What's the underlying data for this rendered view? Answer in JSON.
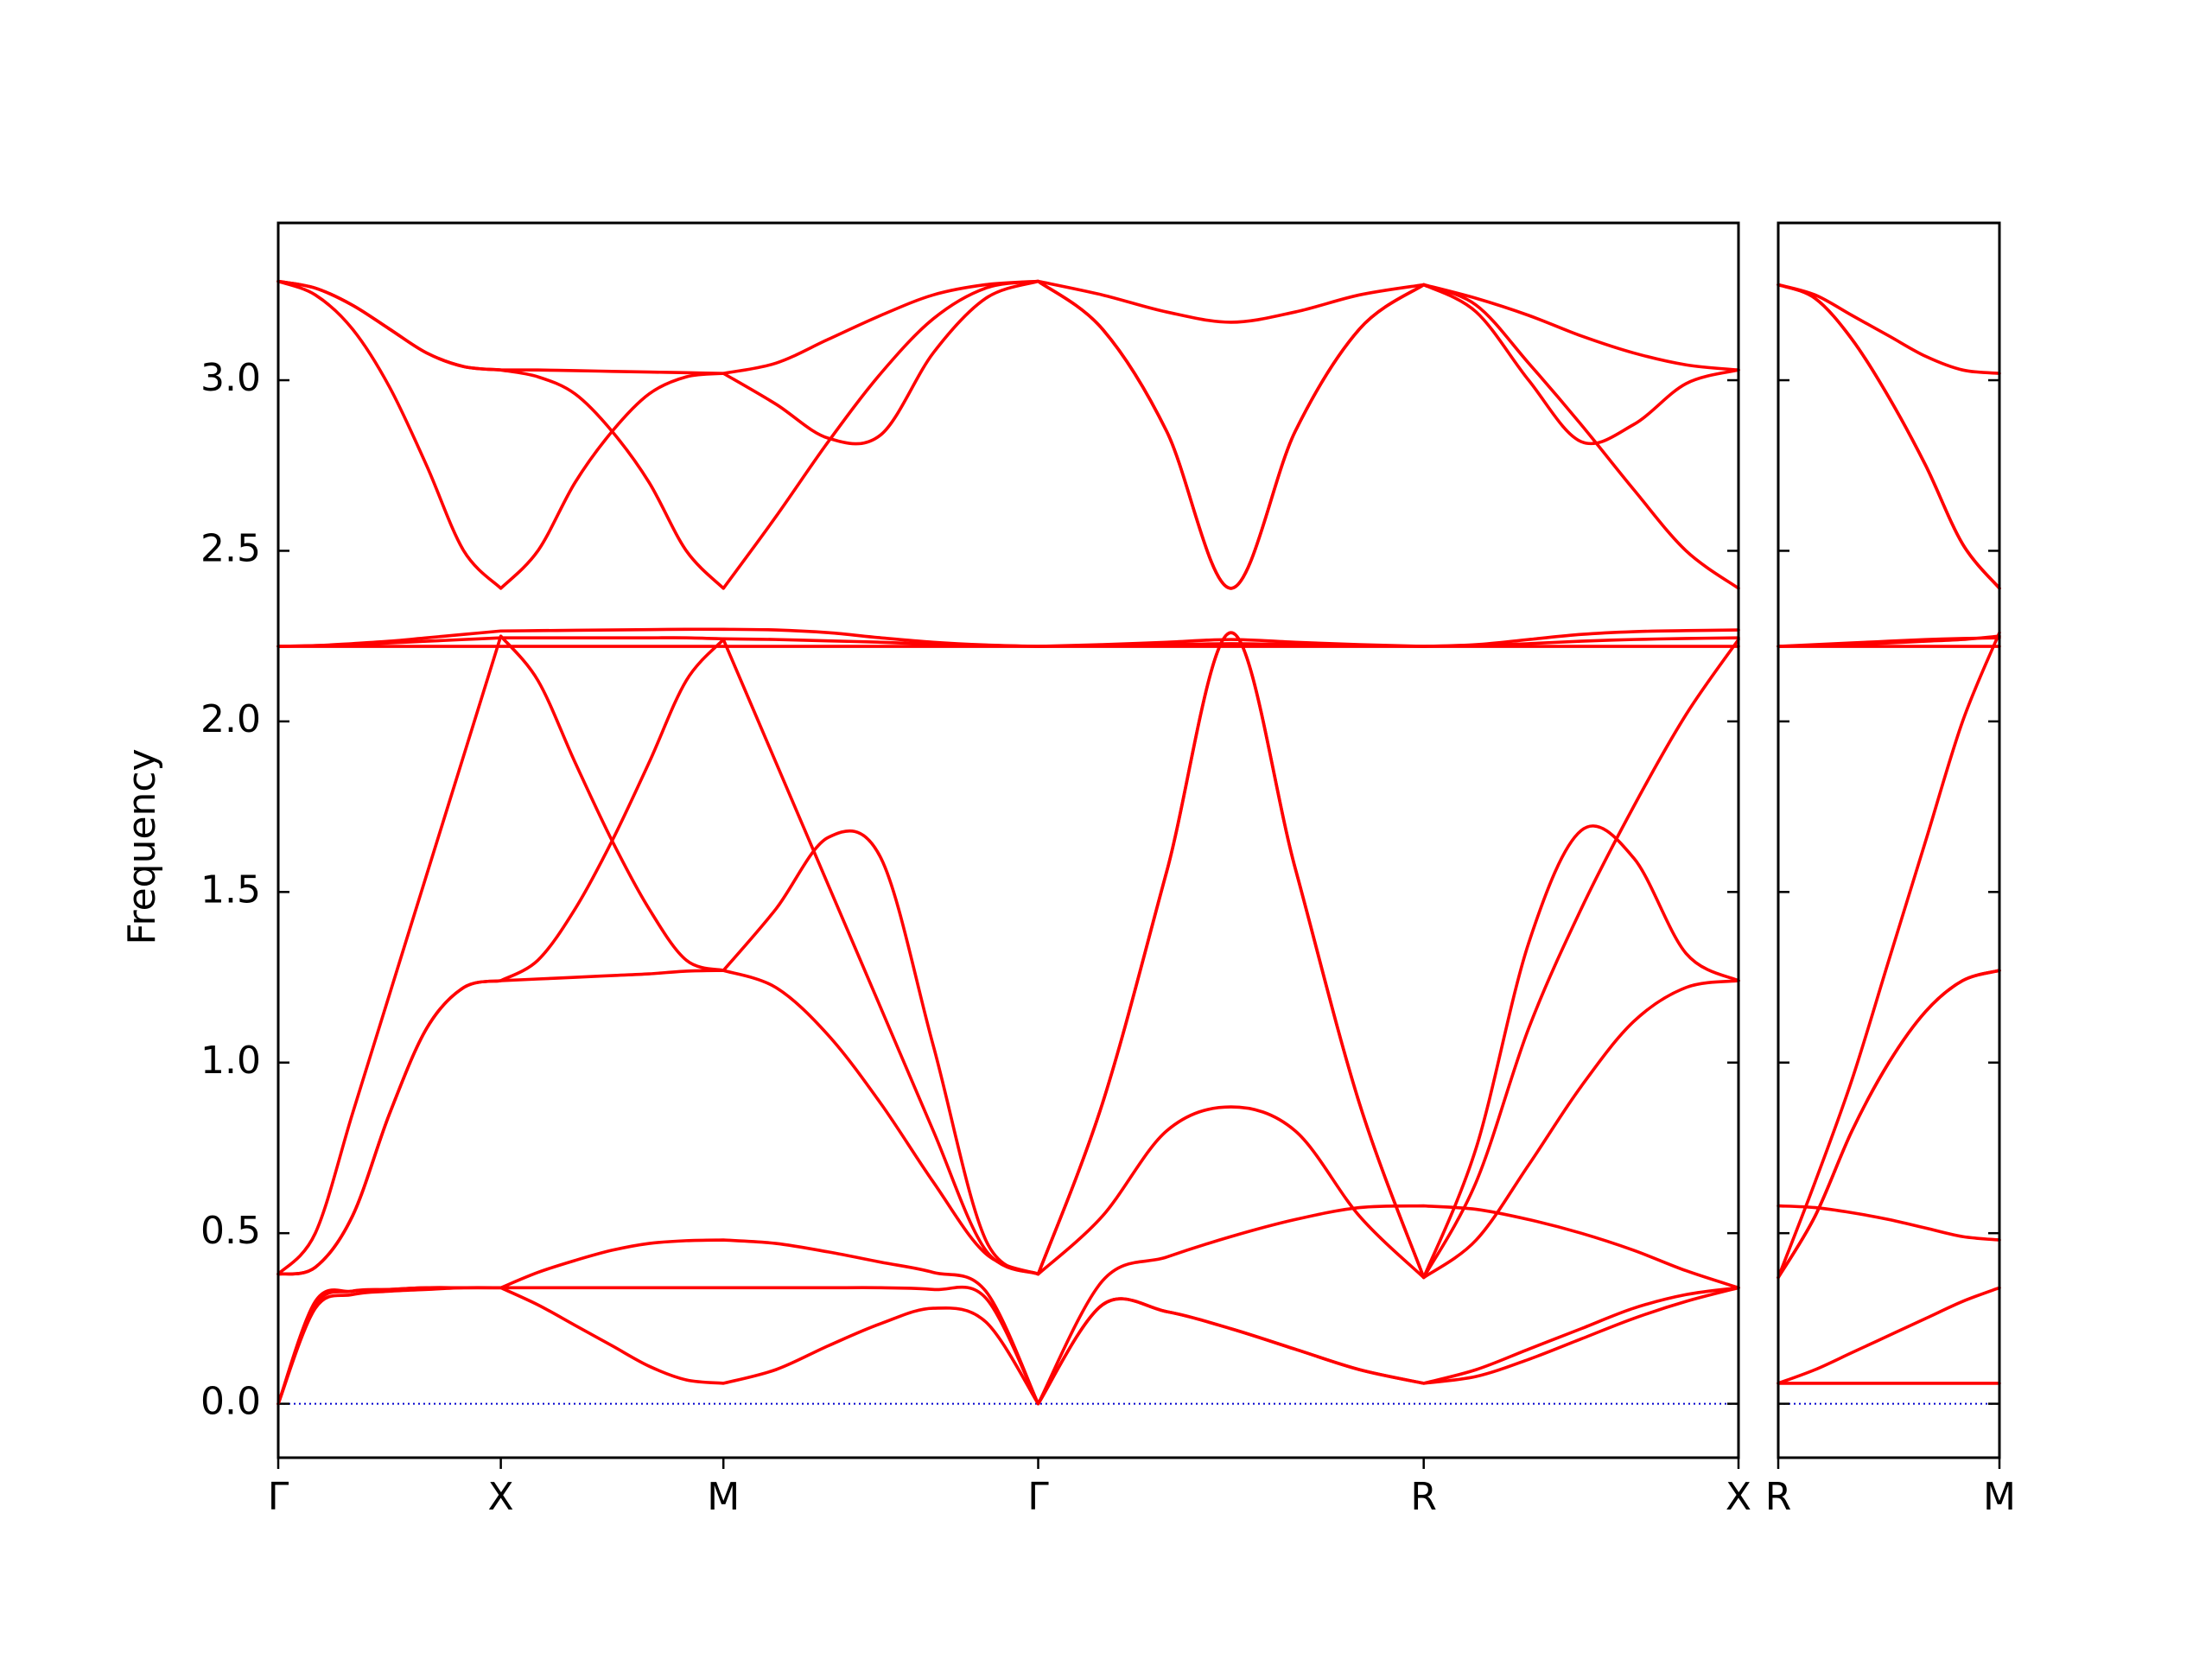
{
  "chart_data": [
    {
      "type": "line",
      "y_label": "Frequency",
      "x": [
        0,
        0.0833,
        0.1667,
        0.25,
        0.3333,
        0.4167,
        0.5,
        0.5833,
        0.6667,
        0.75,
        0.8333,
        0.9167,
        1.0,
        1.1179,
        1.2357,
        1.3536,
        1.4714,
        1.5893,
        1.7071,
        1.8514,
        1.9958,
        2.1401,
        2.2844,
        2.4288,
        2.5731,
        2.691,
        2.8088,
        2.9267,
        3.0445,
        3.1624,
        3.2802
      ],
      "xlim": [
        0,
        3.2802
      ],
      "xticks": [
        {
          "value": 0,
          "label": "Γ"
        },
        {
          "value": 0.5,
          "label": "X"
        },
        {
          "value": 1.0,
          "label": "M"
        },
        {
          "value": 1.7071,
          "label": "Γ"
        },
        {
          "value": 2.5731,
          "label": "R"
        },
        {
          "value": 3.2802,
          "label": "X"
        }
      ],
      "ylim": [
        -0.158,
        3.461
      ],
      "yticks": [
        {
          "value": 0,
          "label": "0.0"
        },
        0.5,
        {
          "value": 1,
          "label": "1.0"
        },
        1.5,
        {
          "value": 2,
          "label": "2.0"
        },
        2.5,
        {
          "value": 3,
          "label": "3.0"
        }
      ],
      "zero_line": 0,
      "zero_line_color": "#0000cd",
      "series": [
        {
          "color": "#ff0000",
          "values": [
            0,
            0.3,
            0.33,
            0.335,
            0.34,
            0.34,
            0.34,
            0.385,
            0.42,
            0.45,
            0.47,
            0.478,
            0.48,
            0.47,
            0.445,
            0.415,
            0.385,
            0.33,
            0,
            0.29,
            0.27,
            0.22,
            0.16,
            0.1,
            0.06,
            0.08,
            0.13,
            0.19,
            0.25,
            0.3,
            0.34
          ]
        },
        {
          "color": "#ff0000",
          "values": [
            0,
            0.29,
            0.33,
            0.335,
            0.34,
            0.34,
            0.34,
            0.34,
            0.34,
            0.34,
            0.34,
            0.34,
            0.34,
            0.34,
            0.34,
            0.34,
            0.335,
            0.31,
            0,
            0.36,
            0.43,
            0.49,
            0.54,
            0.575,
            0.58,
            0.57,
            0.54,
            0.5,
            0.45,
            0.39,
            0.34
          ]
        },
        {
          "color": "#ff0000",
          "values": [
            0,
            0.28,
            0.32,
            0.33,
            0.335,
            0.34,
            0.34,
            0.29,
            0.23,
            0.17,
            0.11,
            0.07,
            0.06,
            0.1,
            0.17,
            0.235,
            0.28,
            0.24,
            0,
            0.29,
            0.27,
            0.22,
            0.16,
            0.1,
            0.06,
            0.1,
            0.16,
            0.22,
            0.28,
            0.32,
            0.34
          ]
        },
        {
          "color": "#ff0000",
          "values": [
            0.38,
            0.4,
            0.55,
            0.85,
            1.1,
            1.22,
            1.24,
            1.245,
            1.25,
            1.255,
            1.26,
            1.268,
            1.27,
            1.22,
            1.08,
            0.88,
            0.65,
            0.44,
            0.38,
            0.55,
            0.8,
            0.87,
            0.8,
            0.55,
            0.37,
            0.48,
            0.7,
            0.93,
            1.12,
            1.22,
            1.24
          ]
        },
        {
          "color": "#ff0000",
          "values": [
            0.38,
            0.4,
            0.55,
            0.85,
            1.1,
            1.22,
            1.24,
            1.3,
            1.45,
            1.65,
            1.88,
            2.12,
            2.24,
            1.88,
            1.52,
            1.16,
            0.8,
            0.45,
            0.38,
            0.88,
            1.56,
            2.26,
            1.57,
            0.88,
            0.37,
            0.65,
            1.1,
            1.45,
            1.75,
            2.02,
            2.24
          ]
        },
        {
          "color": "#ff0000",
          "values": [
            0.38,
            0.5,
            0.85,
            1.2,
            1.55,
            1.9,
            2.25,
            2.12,
            1.88,
            1.65,
            1.45,
            1.3,
            1.27,
            1.45,
            1.66,
            1.6,
            1.05,
            0.48,
            0.38,
            0.88,
            1.56,
            2.26,
            1.57,
            0.88,
            0.37,
            0.75,
            1.35,
            1.68,
            1.6,
            1.32,
            1.24
          ]
        },
        {
          "color": "#ff0000",
          "values": [
            2.22,
            2.222,
            2.225,
            2.23,
            2.235,
            2.24,
            2.245,
            2.245,
            2.245,
            2.245,
            2.245,
            2.245,
            2.242,
            2.24,
            2.236,
            2.232,
            2.226,
            2.222,
            2.22,
            2.222,
            2.225,
            2.228,
            2.225,
            2.222,
            2.22,
            2.222,
            2.228,
            2.235,
            2.24,
            2.243,
            2.245
          ]
        },
        {
          "color": "#ff0000",
          "values": [
            2.22,
            2.222,
            2.228,
            2.235,
            2.245,
            2.255,
            2.265,
            2.266,
            2.267,
            2.268,
            2.269,
            2.27,
            2.27,
            2.268,
            2.26,
            2.245,
            2.232,
            2.224,
            2.22,
            2.225,
            2.232,
            2.24,
            2.232,
            2.225,
            2.22,
            2.225,
            2.24,
            2.255,
            2.263,
            2.266,
            2.268
          ]
        },
        {
          "color": "#ff0000",
          "values": [
            2.22,
            2.22,
            2.22,
            2.22,
            2.22,
            2.22,
            2.22,
            2.22,
            2.22,
            2.22,
            2.22,
            2.22,
            2.22,
            2.22,
            2.22,
            2.22,
            2.22,
            2.22,
            2.22,
            2.22,
            2.22,
            2.22,
            2.22,
            2.22,
            2.22,
            2.22,
            2.22,
            2.22,
            2.22,
            2.22,
            2.22
          ]
        },
        {
          "color": "#ff0000",
          "values": [
            3.29,
            3.25,
            3.15,
            2.98,
            2.75,
            2.5,
            2.39,
            2.5,
            2.7,
            2.85,
            2.96,
            3.01,
            3.02,
            3.05,
            3.12,
            3.19,
            3.25,
            3.28,
            3.29,
            3.25,
            3.2,
            3.17,
            3.2,
            3.25,
            3.28,
            3.24,
            3.19,
            3.13,
            3.08,
            3.045,
            3.03
          ]
        },
        {
          "color": "#ff0000",
          "values": [
            3.29,
            3.27,
            3.22,
            3.15,
            3.08,
            3.04,
            3.03,
            3.03,
            3.028,
            3.026,
            3.024,
            3.022,
            3.02,
            2.93,
            2.83,
            2.84,
            3.08,
            3.24,
            3.29,
            3.15,
            2.85,
            2.39,
            2.85,
            3.15,
            3.28,
            3.2,
            3.0,
            2.82,
            2.87,
            2.99,
            3.03
          ]
        },
        {
          "color": "#ff0000",
          "values": [
            3.29,
            3.27,
            3.22,
            3.15,
            3.08,
            3.04,
            3.03,
            3.01,
            2.96,
            2.85,
            2.7,
            2.5,
            2.39,
            2.6,
            2.82,
            3.02,
            3.18,
            3.27,
            3.29,
            3.15,
            2.85,
            2.39,
            2.85,
            3.15,
            3.28,
            3.22,
            3.05,
            2.87,
            2.68,
            2.5,
            2.39
          ]
        }
      ]
    },
    {
      "type": "line",
      "x": [
        0,
        0.0833,
        0.1667,
        0.25,
        0.3333,
        0.4167,
        0.5
      ],
      "xlim": [
        0,
        0.5
      ],
      "xticks": [
        {
          "value": 0,
          "label": "R"
        },
        {
          "value": 0.5,
          "label": "M"
        }
      ],
      "ylim": [
        -0.158,
        3.461
      ],
      "zero_line": 0,
      "zero_line_color": "#0000cd",
      "series": [
        {
          "color": "#ff0000",
          "values": [
            0.06,
            0.06,
            0.06,
            0.06,
            0.06,
            0.06,
            0.06
          ]
        },
        {
          "color": "#ff0000",
          "values": [
            0.58,
            0.575,
            0.56,
            0.54,
            0.515,
            0.49,
            0.48
          ]
        },
        {
          "color": "#ff0000",
          "values": [
            0.06,
            0.1,
            0.15,
            0.2,
            0.25,
            0.3,
            0.34
          ]
        },
        {
          "color": "#ff0000",
          "values": [
            0.37,
            0.55,
            0.8,
            1.0,
            1.15,
            1.24,
            1.27
          ]
        },
        {
          "color": "#ff0000",
          "values": [
            0.37,
            0.65,
            0.95,
            1.3,
            1.65,
            2.0,
            2.26
          ]
        },
        {
          "color": "#ff0000",
          "values": [
            0.37,
            0.55,
            0.8,
            1.0,
            1.15,
            1.24,
            1.27
          ]
        },
        {
          "color": "#ff0000",
          "values": [
            2.22,
            2.225,
            2.23,
            2.235,
            2.24,
            2.243,
            2.245
          ]
        },
        {
          "color": "#ff0000",
          "values": [
            2.22,
            2.222,
            2.225,
            2.23,
            2.235,
            2.24,
            2.25
          ]
        },
        {
          "color": "#ff0000",
          "values": [
            2.22,
            2.22,
            2.22,
            2.22,
            2.22,
            2.22,
            2.22
          ]
        },
        {
          "color": "#ff0000",
          "values": [
            3.28,
            3.25,
            3.19,
            3.13,
            3.07,
            3.03,
            3.02
          ]
        },
        {
          "color": "#ff0000",
          "values": [
            3.28,
            3.24,
            3.12,
            2.95,
            2.75,
            2.52,
            2.39
          ]
        },
        {
          "color": "#ff0000",
          "values": [
            3.28,
            3.24,
            3.12,
            2.95,
            2.75,
            2.52,
            2.39
          ]
        }
      ]
    }
  ]
}
